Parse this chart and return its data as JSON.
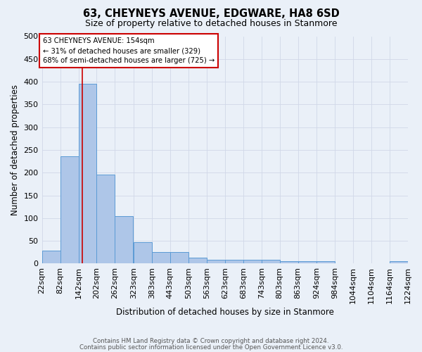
{
  "title": "63, CHEYNEYS AVENUE, EDGWARE, HA8 6SD",
  "subtitle": "Size of property relative to detached houses in Stanmore",
  "xlabel": "Distribution of detached houses by size in Stanmore",
  "ylabel": "Number of detached properties",
  "bar_left_edges": [
    22,
    82,
    142,
    202,
    262,
    323,
    383,
    443,
    503,
    563,
    623,
    683,
    743,
    803,
    863,
    924,
    984,
    1044,
    1104,
    1164
  ],
  "bar_heights": [
    28,
    236,
    396,
    196,
    104,
    47,
    25,
    25,
    13,
    9,
    9,
    9,
    9,
    5,
    5,
    5,
    0,
    0,
    0,
    5
  ],
  "bin_width": 60,
  "bar_color": "#aec6e8",
  "bar_edge_color": "#5b9bd5",
  "grid_color": "#d0d8e8",
  "bg_color": "#eaf0f8",
  "property_line_x": 154,
  "property_line_color": "#cc0000",
  "annotation_text": "63 CHEYNEYS AVENUE: 154sqm\n← 31% of detached houses are smaller (329)\n68% of semi-detached houses are larger (725) →",
  "annotation_box_color": "#ffffff",
  "annotation_box_edge": "#cc0000",
  "ylim": [
    0,
    500
  ],
  "yticks": [
    0,
    50,
    100,
    150,
    200,
    250,
    300,
    350,
    400,
    450,
    500
  ],
  "tick_labels": [
    "22sqm",
    "82sqm",
    "142sqm",
    "202sqm",
    "262sqm",
    "323sqm",
    "383sqm",
    "443sqm",
    "503sqm",
    "563sqm",
    "623sqm",
    "683sqm",
    "743sqm",
    "803sqm",
    "863sqm",
    "924sqm",
    "984sqm",
    "1044sqm",
    "1104sqm",
    "1164sqm",
    "1224sqm"
  ],
  "footer_line1": "Contains HM Land Registry data © Crown copyright and database right 2024.",
  "footer_line2": "Contains public sector information licensed under the Open Government Licence v3.0."
}
